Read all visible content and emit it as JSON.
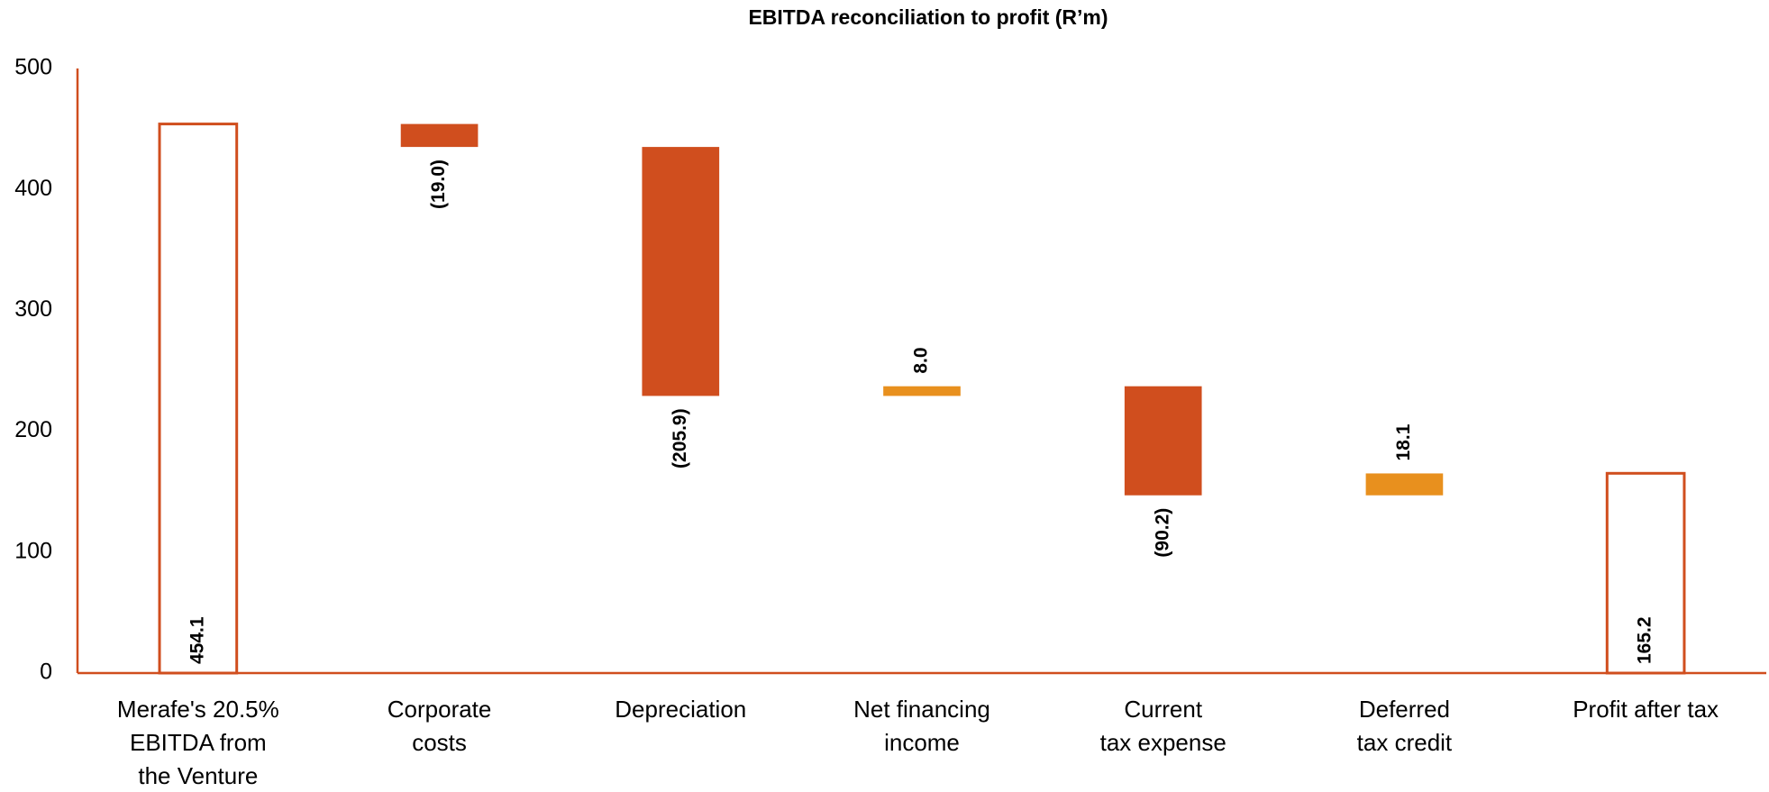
{
  "chart_data": {
    "type": "waterfall",
    "title": "EBITDA reconciliation to profit (R’m)",
    "categories": [
      "Merafe's 20.5%\nEBITDA from\nthe Venture",
      "Corporate\ncosts",
      "Depreciation",
      "Net financing\nincome",
      "Current\ntax expense",
      "Deferred\ntax credit",
      "Profit after tax"
    ],
    "values": [
      454.1,
      -19.0,
      -205.9,
      8.0,
      -90.2,
      18.1,
      165.2
    ],
    "value_labels": [
      "454.1",
      "(19.0)",
      "(205.9)",
      "8.0",
      "(90.2)",
      "18.1",
      "165.2"
    ],
    "measure": [
      "total",
      "relative",
      "relative",
      "relative",
      "relative",
      "relative",
      "total"
    ],
    "colors": {
      "total": "#d04e1e",
      "decrease": "#d04e1e",
      "increase": "#e8901e"
    },
    "ylim": [
      0,
      500
    ],
    "yticks": [
      0,
      100,
      200,
      300,
      400,
      500
    ],
    "grid": false
  }
}
